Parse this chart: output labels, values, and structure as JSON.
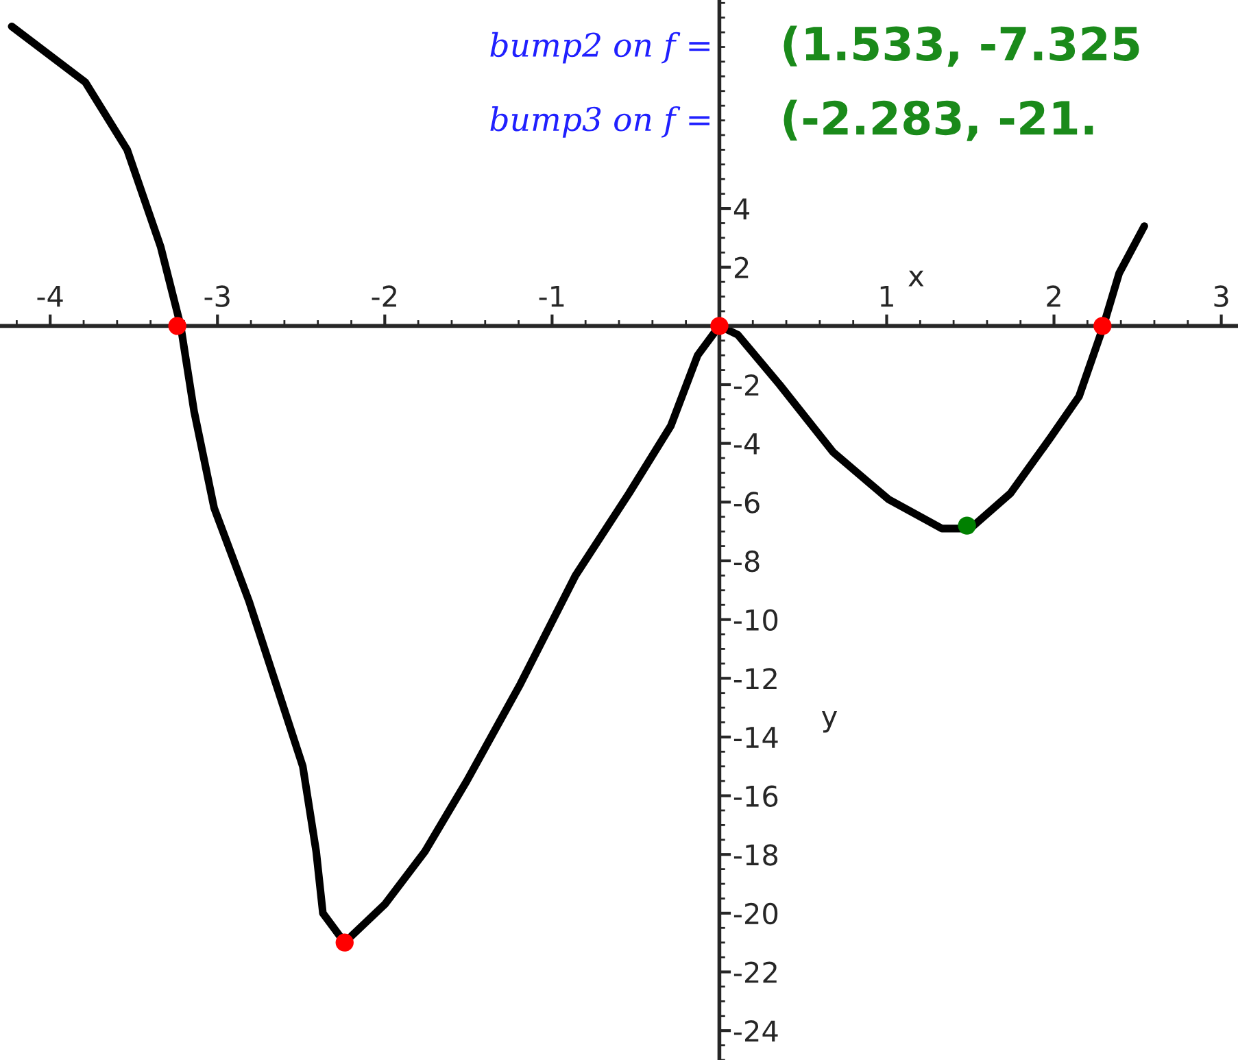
{
  "chart_data": {
    "type": "line",
    "xlabel": "x",
    "ylabel": "y",
    "annotations": [
      "bump2 on f =",
      "(1.533, -7.325",
      "bump3 on f =",
      "(-2.283, -21."
    ],
    "xlim": [
      -4.3,
      3.1
    ],
    "ylim": [
      -25.0,
      11.1
    ],
    "xticks": [
      -4,
      -3,
      -2,
      -1,
      1,
      2,
      3
    ],
    "yticks": [
      -24,
      -22,
      -20,
      -18,
      -16,
      -14,
      -12,
      -10,
      -8,
      -6,
      -4,
      -2,
      2,
      4
    ],
    "grid": false,
    "legend": false,
    "series": [
      {
        "color": "#000000",
        "marker": "none",
        "line_style": "solid",
        "x": [
          -4.23,
          -3.79,
          -3.54,
          -3.34,
          -3.22,
          -3.14,
          -3.02,
          -2.81,
          -2.65,
          -2.49,
          -2.41,
          -2.37,
          -2.24,
          -2.0,
          -1.76,
          -1.51,
          -1.19,
          -0.86,
          -0.54,
          -0.29,
          -0.13,
          0,
          0.11,
          0.36,
          0.68,
          1.01,
          1.33,
          1.5,
          1.74,
          1.98,
          2.15,
          2.29,
          2.39,
          2.54
        ],
        "values": [
          10.2,
          8.3,
          6.0,
          2.7,
          0,
          -2.9,
          -6.2,
          -9.4,
          -12.2,
          -15.0,
          -17.9,
          -20.0,
          -21.0,
          -19.7,
          -17.9,
          -15.5,
          -12.2,
          -8.5,
          -5.7,
          -3.4,
          -1.0,
          0,
          -0.3,
          -2.0,
          -4.3,
          -5.9,
          -6.9,
          -6.9,
          -5.7,
          -3.8,
          -2.4,
          -0.1,
          1.8,
          3.4
        ]
      },
      {
        "type": "scatter",
        "color": "#ff0000",
        "marker": "circle",
        "x": [
          -3.24,
          0,
          -2.24,
          2.29
        ],
        "values": [
          0,
          0,
          -21.0,
          0
        ]
      },
      {
        "type": "scatter",
        "color": "#008000",
        "marker": "circle",
        "x": [
          1.48
        ],
        "values": [
          -6.8
        ]
      }
    ]
  }
}
